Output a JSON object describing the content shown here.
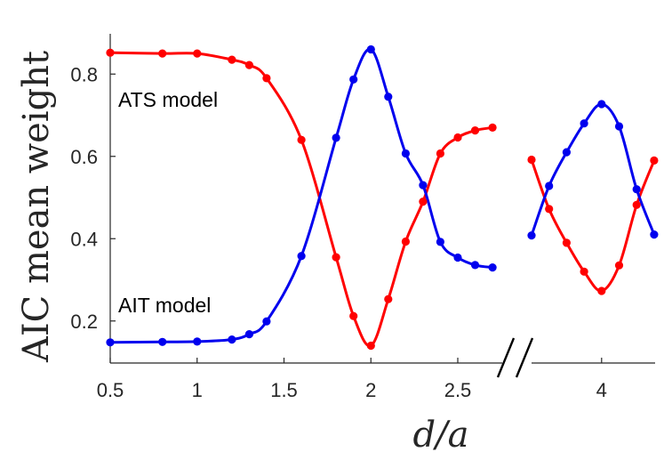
{
  "chart_data": {
    "type": "line",
    "xlabel": "d/a",
    "ylabel": "AIC mean weight",
    "ylim": [
      0.1,
      0.9
    ],
    "y_ticks": [
      "0.2",
      "0.4",
      "0.6",
      "0.8"
    ],
    "x_ticks": [
      "0.5",
      "1",
      "1.5",
      "2",
      "2.5",
      "4"
    ],
    "x_axis_break": true,
    "grid": false,
    "annotations": [
      "ATS model",
      "AIT model"
    ],
    "colors": {
      "ATS": "#ff0000",
      "AIT": "#0000ee",
      "axis": "#262626"
    },
    "series": [
      {
        "color": "#ff0000",
        "points": [
          [
            0.5,
            0.852
          ],
          [
            0.8,
            0.85
          ],
          [
            1.0,
            0.85
          ],
          [
            1.2,
            0.835
          ],
          [
            1.3,
            0.822
          ],
          [
            1.4,
            0.79
          ],
          [
            1.6,
            0.64
          ],
          [
            1.8,
            0.355
          ],
          [
            1.9,
            0.212
          ],
          [
            2.0,
            0.14
          ],
          [
            2.1,
            0.253
          ],
          [
            2.2,
            0.393
          ],
          [
            2.3,
            0.49
          ],
          [
            2.4,
            0.607
          ],
          [
            2.5,
            0.646
          ],
          [
            2.6,
            0.663
          ],
          [
            2.7,
            0.67
          ],
          [
            3.6,
            0.592
          ],
          [
            3.7,
            0.472
          ],
          [
            3.8,
            0.39
          ],
          [
            3.9,
            0.32
          ],
          [
            4.0,
            0.273
          ],
          [
            4.1,
            0.335
          ],
          [
            4.2,
            0.482
          ],
          [
            4.3,
            0.59
          ]
        ]
      },
      {
        "color": "#0000ee",
        "points": [
          [
            0.5,
            0.148
          ],
          [
            0.8,
            0.149
          ],
          [
            1.0,
            0.15
          ],
          [
            1.2,
            0.155
          ],
          [
            1.3,
            0.168
          ],
          [
            1.4,
            0.199
          ],
          [
            1.6,
            0.358
          ],
          [
            1.8,
            0.645
          ],
          [
            1.9,
            0.787
          ],
          [
            2.0,
            0.86
          ],
          [
            2.1,
            0.745
          ],
          [
            2.2,
            0.607
          ],
          [
            2.3,
            0.53
          ],
          [
            2.4,
            0.392
          ],
          [
            2.5,
            0.354
          ],
          [
            2.6,
            0.336
          ],
          [
            2.7,
            0.33
          ],
          [
            3.6,
            0.408
          ],
          [
            3.7,
            0.528
          ],
          [
            3.8,
            0.61
          ],
          [
            3.9,
            0.68
          ],
          [
            4.0,
            0.727
          ],
          [
            4.1,
            0.673
          ],
          [
            4.2,
            0.52
          ],
          [
            4.3,
            0.41
          ]
        ]
      }
    ]
  }
}
